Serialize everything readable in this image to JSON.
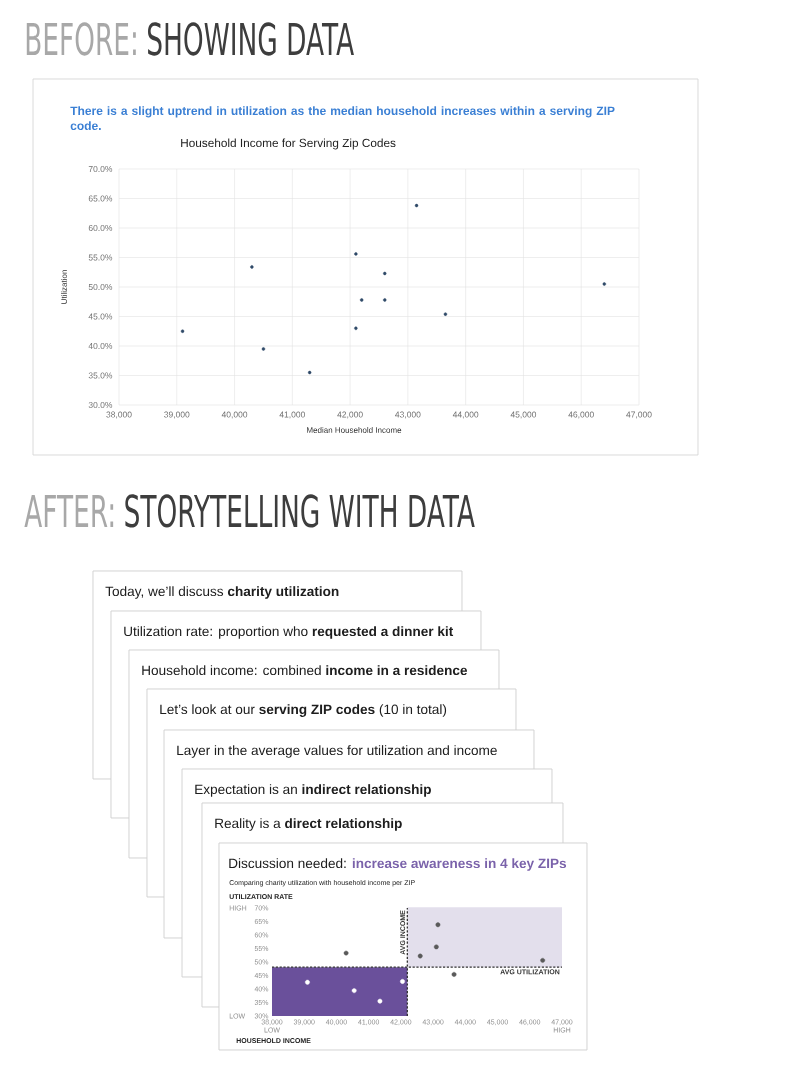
{
  "chart_data": [
    {
      "type": "scatter",
      "title": "Household Income for Serving Zip Codes",
      "subtitle": "There is a slight uptrend in utilization as the median household increases within a serving ZIP code.",
      "xlabel": "Median Household Income",
      "ylabel": "Utilization",
      "annotations": [
        "BEFORE:",
        "SHOWING DATA"
      ],
      "x": [
        39100,
        40300,
        40500,
        41300,
        42100,
        42100,
        42200,
        42600,
        42600,
        43150,
        43650,
        46400
      ],
      "values": [
        42.5,
        53.4,
        39.5,
        35.5,
        55.6,
        43.0,
        47.8,
        52.3,
        47.8,
        63.8,
        45.4,
        50.5
      ],
      "color": "#2f4a68",
      "marker": "circle",
      "grid": true,
      "xlim": [
        38000,
        47000
      ],
      "xticks": [
        {
          "value": 38000,
          "label": "38,000"
        },
        {
          "value": 39000,
          "label": "39,000"
        },
        {
          "value": 40000,
          "label": "40,000"
        },
        {
          "value": 41000,
          "label": "41,000"
        },
        {
          "value": 42000,
          "label": "42,000"
        },
        {
          "value": 43000,
          "label": "43,000"
        },
        {
          "value": 44000,
          "label": "44,000"
        },
        {
          "value": 45000,
          "label": "45,000"
        },
        {
          "value": 46000,
          "label": "46,000"
        },
        {
          "value": 47000,
          "label": "47,000"
        }
      ],
      "ylim": [
        30,
        70
      ],
      "yticks": [
        {
          "value": 30,
          "label": "30.0%"
        },
        {
          "value": 35,
          "label": "35.0%"
        },
        {
          "value": 40,
          "label": "40.0%"
        },
        {
          "value": 45,
          "label": "45.0%"
        },
        {
          "value": 50,
          "label": "50.0%"
        },
        {
          "value": 55,
          "label": "55.0%"
        },
        {
          "value": 60,
          "label": "60.0%"
        },
        {
          "value": 65,
          "label": "65.0%"
        },
        {
          "value": 70,
          "label": "70.0%"
        }
      ]
    },
    {
      "type": "other",
      "annotations": [
        "AFTER:",
        "STORYTELLING WITH DATA",
        "Today, we’ll discuss **charity utilization**",
        "Utilization rate: proportion who **requested a dinner kit**",
        "Household income: combined **income in a residence**",
        "Let’s look at our **serving ZIP codes** (10 in total)",
        "Layer in the average values for utilization and income",
        "Expectation is an **indirect relationship**",
        "Reality is a **direct relationship**"
      ]
    },
    {
      "type": "scatter",
      "title": "Discussion needed: **increase awareness in 4 key ZIPs**",
      "subtitle": "Comparing charity utilization with household income per ZIP",
      "xlabel": "HOUSEHOLD INCOME",
      "ylabel": "UTILIZATION RATE",
      "annotations": [
        "HIGH",
        "LOW",
        "LOW",
        "HIGH"
      ],
      "xlim": [
        38000,
        47000
      ],
      "xticks": [
        {
          "value": 38000,
          "label": "38,000"
        },
        {
          "value": 39000,
          "label": "39,000"
        },
        {
          "value": 40000,
          "label": "40,000"
        },
        {
          "value": 41000,
          "label": "41,000"
        },
        {
          "value": 42000,
          "label": "42,000"
        },
        {
          "value": 43000,
          "label": "43,000"
        },
        {
          "value": 44000,
          "label": "44,000"
        },
        {
          "value": 45000,
          "label": "45,000"
        },
        {
          "value": 46000,
          "label": "46,000"
        },
        {
          "value": 47000,
          "label": "47,000"
        }
      ],
      "ylim": [
        30,
        70
      ],
      "yticks": [
        {
          "value": 30,
          "label": "30%"
        },
        {
          "value": 35,
          "label": "35%"
        },
        {
          "value": 40,
          "label": "40%"
        },
        {
          "value": 45,
          "label": "45%"
        },
        {
          "value": 50,
          "label": "50%"
        },
        {
          "value": 55,
          "label": "55%"
        },
        {
          "value": 60,
          "label": "60%"
        },
        {
          "value": 65,
          "label": "65%"
        },
        {
          "value": 70,
          "label": "70%"
        }
      ],
      "ref_lines": [
        {
          "axis": "x",
          "value": 42200,
          "label": "AVG INCOME",
          "color": "#333333",
          "line_style": "dashed"
        },
        {
          "axis": "y",
          "value": 48.1,
          "label": "AVG UTILIZATION",
          "color": "#333333",
          "line_style": "dashed"
        }
      ],
      "series": [
        {
          "type": "area",
          "color": "#6a509b",
          "x": [
            38000,
            42200
          ],
          "values": [
            48.1,
            48.1
          ]
        },
        {
          "type": "line",
          "color": "#e3dfec",
          "x": [
            42200,
            47000
          ],
          "values": [
            70,
            70
          ],
          "lower": [
            48.1,
            48.1
          ],
          "upper": [
            70,
            70
          ]
        },
        {
          "type": "scatter",
          "marker": "circle",
          "x": [
            39100,
            40300,
            40550,
            41350,
            42050,
            42600,
            43150,
            43100,
            43650,
            46400
          ],
          "values": [
            42.5,
            53.3,
            39.4,
            35.5,
            42.8,
            52.2,
            63.8,
            55.6,
            45.4,
            50.6
          ],
          "colors": [
            "#ffffff",
            "#5a5a5a",
            "#ffffff",
            "#ffffff",
            "#ffffff",
            "#5a5a5a",
            "#5a5a5a",
            "#5a5a5a",
            "#5a5a5a",
            "#5a5a5a"
          ]
        }
      ]
    }
  ]
}
